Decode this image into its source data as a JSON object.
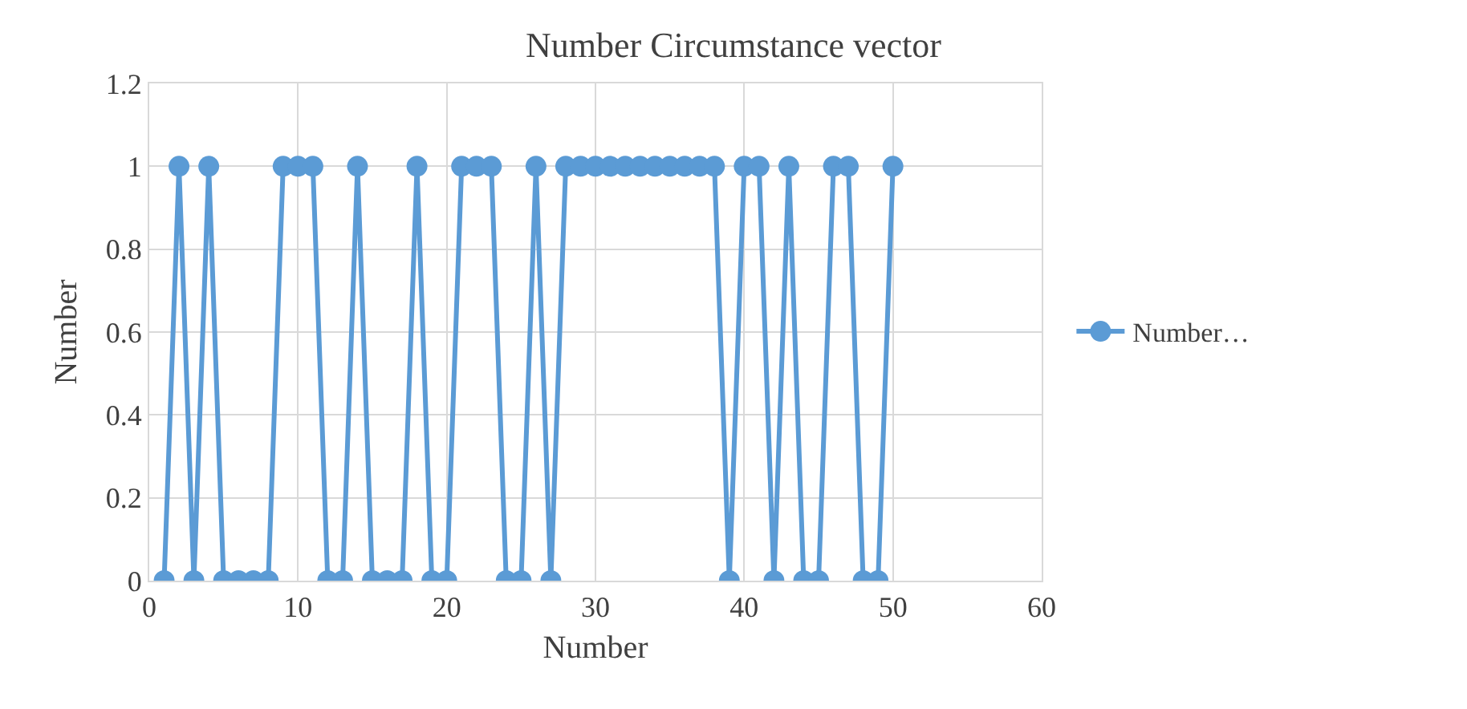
{
  "chart_data": {
    "type": "line",
    "title": "Number Circumstance vector",
    "xlabel": "Number",
    "ylabel": "Number",
    "x": [
      1,
      2,
      3,
      4,
      5,
      6,
      7,
      8,
      9,
      10,
      11,
      12,
      13,
      14,
      15,
      16,
      17,
      18,
      19,
      20,
      21,
      22,
      23,
      24,
      25,
      26,
      27,
      28,
      29,
      30,
      31,
      32,
      33,
      34,
      35,
      36,
      37,
      38,
      39,
      40,
      41,
      42,
      43,
      44,
      45,
      46,
      47,
      48,
      49,
      50
    ],
    "series": [
      {
        "name": "Number…",
        "color": "#5b9bd5",
        "values": [
          0,
          1,
          0,
          1,
          0,
          0,
          0,
          0,
          1,
          1,
          1,
          0,
          0,
          1,
          0,
          0,
          0,
          1,
          0,
          0,
          1,
          1,
          1,
          0,
          0,
          1,
          0,
          1,
          1,
          1,
          1,
          1,
          1,
          1,
          1,
          1,
          1,
          1,
          0,
          1,
          1,
          0,
          1,
          0,
          0,
          1,
          1,
          0,
          0,
          1
        ]
      }
    ],
    "xlim": [
      0,
      60
    ],
    "xticks": [
      0,
      10,
      20,
      30,
      40,
      50,
      60
    ],
    "ylim": [
      0,
      1.2
    ],
    "yticks": [
      0,
      0.2,
      0.4,
      0.6,
      0.8,
      1,
      1.2
    ],
    "grid": true,
    "legend": "right",
    "marker": "circle",
    "line_style": "solid"
  }
}
